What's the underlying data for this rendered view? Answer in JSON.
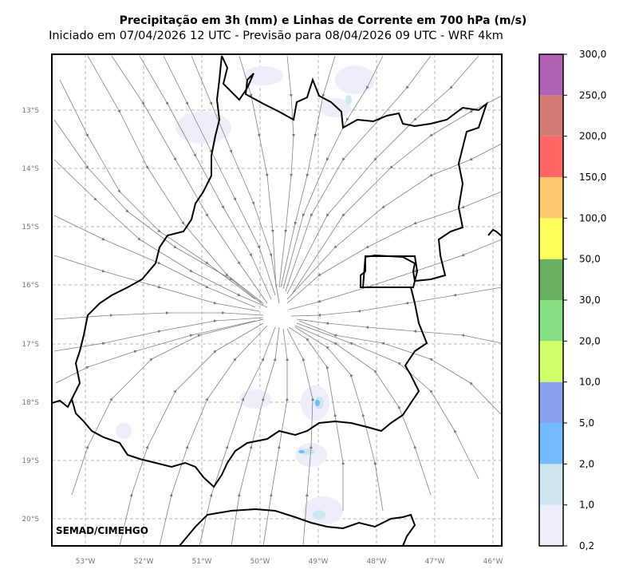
{
  "title": "Precipitação em 3h (mm) e Linhas de Corrente em 700 hPa (m/s)",
  "subtitle": "Iniciado em 07/04/2026 12 UTC - Previsão para 08/04/2026 09 UTC - WRF 4km",
  "credit": "SEMAD/CIMEHGO",
  "lat_labels": [
    "13°S",
    "14°S",
    "15°S",
    "16°S",
    "17°S",
    "18°S",
    "19°S",
    "20°S"
  ],
  "lon_labels": [
    "53°W",
    "52°W",
    "51°W",
    "50°W",
    "49°W",
    "48°W",
    "47°W",
    "46°W"
  ],
  "colorbar": {
    "levels": [
      "0,2",
      "1,0",
      "2,0",
      "5,0",
      "10,0",
      "20,0",
      "30,0",
      "50,0",
      "100,0",
      "150,0",
      "200,0",
      "250,0",
      "300,0"
    ],
    "colors": [
      "#eeeefa",
      "#cfe6ee",
      "#74baff",
      "#8aa1f0",
      "#d1ff6a",
      "#86e083",
      "#67b064",
      "#ffff5a",
      "#ffc86c",
      "#ff6666",
      "#d37a72",
      "#b062b4"
    ]
  }
}
